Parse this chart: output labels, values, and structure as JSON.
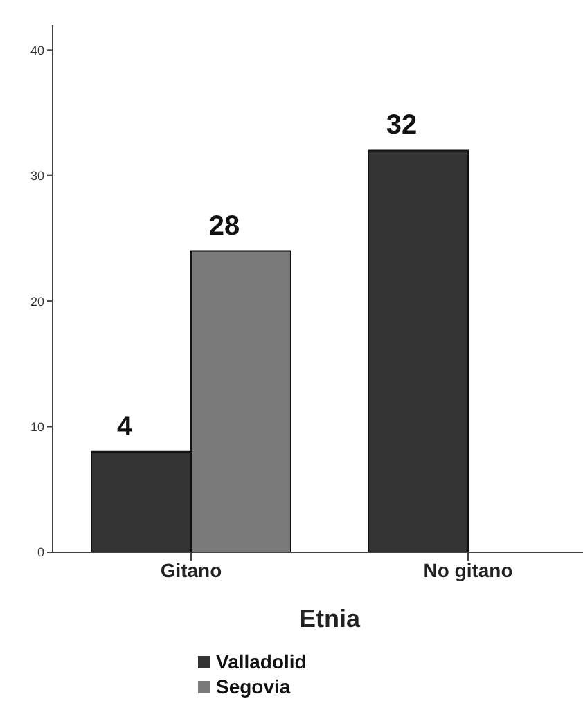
{
  "chart_data": {
    "type": "bar",
    "xlabel": "Etnia",
    "categories": [
      "Gitano",
      "No gitano"
    ],
    "series": [
      {
        "name": "Valladolid",
        "color": "#333333",
        "values": [
          8,
          32
        ],
        "value_labels": [
          null,
          "32"
        ]
      },
      {
        "name": "Segovia",
        "color": "#7a7a7a",
        "values": [
          24,
          null
        ]
      }
    ],
    "annotations": [
      {
        "text": "4",
        "x": "Gitano",
        "y": 8
      },
      {
        "text": "28",
        "x": "Gitano",
        "y": 24
      }
    ],
    "ylim": [
      0,
      42
    ],
    "yticks": [
      0,
      10,
      20,
      30,
      40
    ],
    "grid": false,
    "legend": "bottom"
  }
}
